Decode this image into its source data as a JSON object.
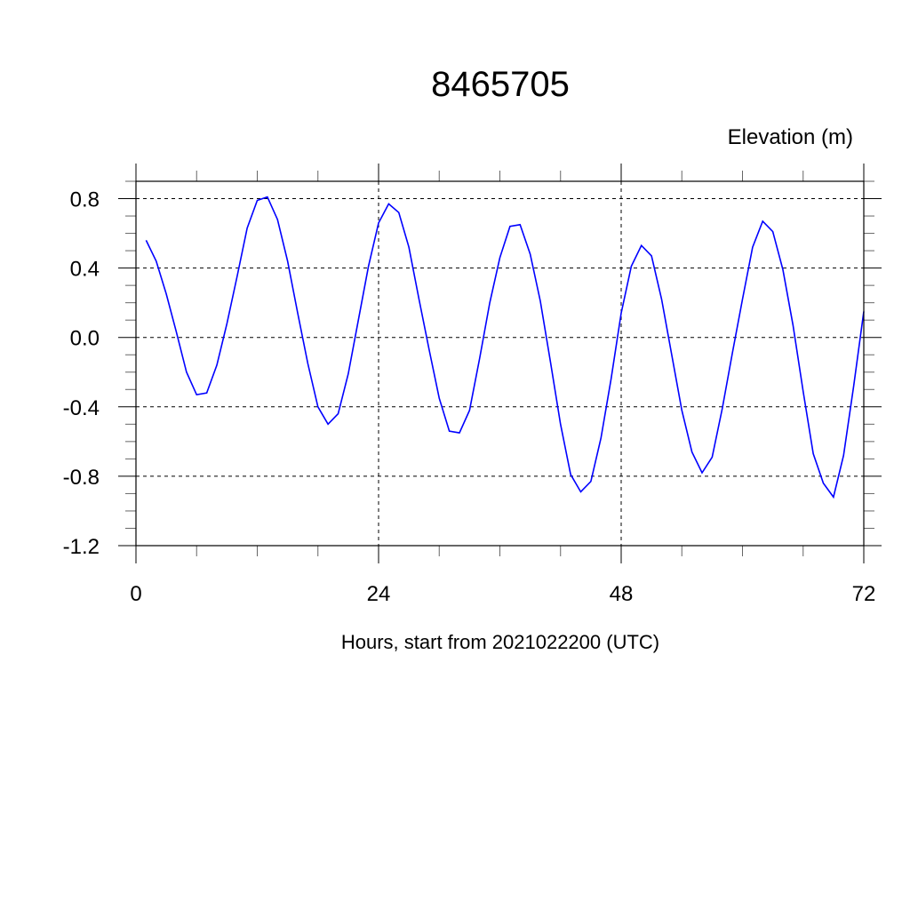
{
  "chart_data": {
    "type": "line",
    "title": "8465705",
    "ylabel": "Elevation (m)",
    "xlabel": "Hours, start from 2021022200 (UTC)",
    "xlim": [
      0,
      72
    ],
    "ylim": [
      -1.2,
      0.9
    ],
    "xticks": [
      0,
      24,
      48,
      72
    ],
    "xtick_labels": [
      "0",
      "24",
      "48",
      "72"
    ],
    "yticks": [
      0.8,
      0.4,
      0.0,
      -0.4,
      -0.8,
      -1.2
    ],
    "ytick_labels": [
      "0.8",
      "0.4",
      "0.0",
      "-0.4",
      "-0.8",
      "-1.2"
    ],
    "grid": true,
    "line_color": "#0000ff",
    "series": [
      {
        "x": [
          1,
          2,
          3,
          4,
          5,
          6,
          7,
          8,
          9,
          10,
          11,
          12,
          13,
          14,
          15,
          16,
          17,
          18,
          19,
          20,
          21,
          22,
          23,
          24,
          25,
          26,
          27,
          28,
          29,
          30,
          31,
          32,
          33,
          34,
          35,
          36,
          37,
          38,
          39,
          40,
          41,
          42,
          43,
          44,
          45,
          46,
          47,
          48,
          49,
          50,
          51,
          52,
          53,
          54,
          55,
          56,
          57,
          58,
          59,
          60,
          61,
          62,
          63,
          64,
          65,
          66,
          67,
          68,
          69,
          70,
          71,
          72
        ],
        "values": [
          0.56,
          0.44,
          0.25,
          0.03,
          -0.2,
          -0.33,
          -0.32,
          -0.16,
          0.08,
          0.35,
          0.63,
          0.79,
          0.81,
          0.68,
          0.44,
          0.14,
          -0.15,
          -0.4,
          -0.5,
          -0.44,
          -0.21,
          0.1,
          0.41,
          0.66,
          0.77,
          0.72,
          0.52,
          0.22,
          -0.07,
          -0.35,
          -0.54,
          -0.55,
          -0.42,
          -0.12,
          0.2,
          0.46,
          0.64,
          0.65,
          0.48,
          0.21,
          -0.14,
          -0.5,
          -0.79,
          -0.89,
          -0.83,
          -0.58,
          -0.24,
          0.14,
          0.41,
          0.53,
          0.47,
          0.22,
          -0.1,
          -0.42,
          -0.66,
          -0.78,
          -0.69,
          -0.41,
          -0.09,
          0.22,
          0.52,
          0.67,
          0.61,
          0.39,
          0.07,
          -0.31,
          -0.67,
          -0.84,
          -0.92,
          -0.68,
          -0.28,
          0.15
        ]
      }
    ]
  }
}
